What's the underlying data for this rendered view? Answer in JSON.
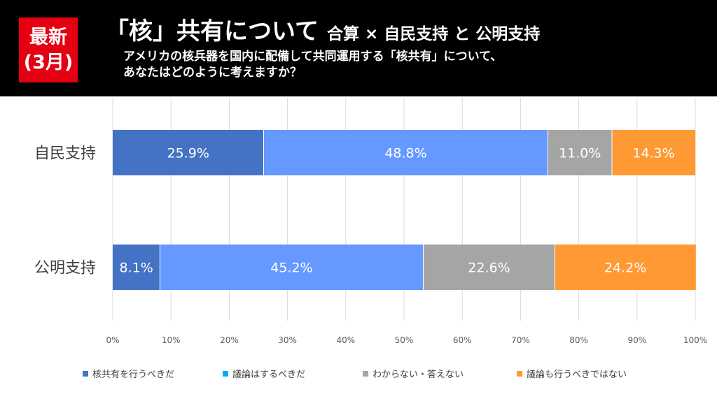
{
  "header": {
    "badge_line1": "最新",
    "badge_line2": "(3月)",
    "title": "「核」共有について",
    "subtitle": "合算 × 自民支持 と 公明支持",
    "question_line1": "アメリカの核兵器を国内に配備して共同運用する「核共有」について、",
    "question_line2": "あなたはどのように考えますか？"
  },
  "colors": {
    "header_bg": "#000000",
    "badge_bg": "#e50012",
    "series": [
      "#4472c4",
      "#6699ff",
      "#a5a5a5",
      "#ff9933"
    ],
    "legend_swatches": [
      "#4472c4",
      "#00b0f0",
      "#a5a5a5",
      "#ff9933"
    ],
    "grid": "#d9d9d9",
    "category_text": "#404040",
    "tick_text": "#595959"
  },
  "chart_data": {
    "type": "bar",
    "orientation": "horizontal",
    "stacked": true,
    "percent_stacked": true,
    "categories": [
      "自民支持",
      "公明支持"
    ],
    "series": [
      {
        "name": "核共有を行うべきだ",
        "values": [
          25.9,
          8.1
        ],
        "labels": [
          "25.9%",
          "8.1%"
        ]
      },
      {
        "name": "議論はするべきだ",
        "values": [
          48.8,
          45.2
        ],
        "labels": [
          "48.8%",
          "45.2%"
        ]
      },
      {
        "name": "わからない・答えない",
        "values": [
          11.0,
          22.6
        ],
        "labels": [
          "11.0%",
          "22.6%"
        ]
      },
      {
        "name": "議論も行うべきではない",
        "values": [
          14.3,
          24.2
        ],
        "labels": [
          "14.3%",
          "24.2%"
        ]
      }
    ],
    "x_ticks": [
      "0%",
      "10%",
      "20%",
      "30%",
      "40%",
      "50%",
      "60%",
      "70%",
      "80%",
      "90%",
      "100%"
    ],
    "xlim": [
      0,
      100
    ],
    "grid": true,
    "legend_position": "bottom"
  }
}
